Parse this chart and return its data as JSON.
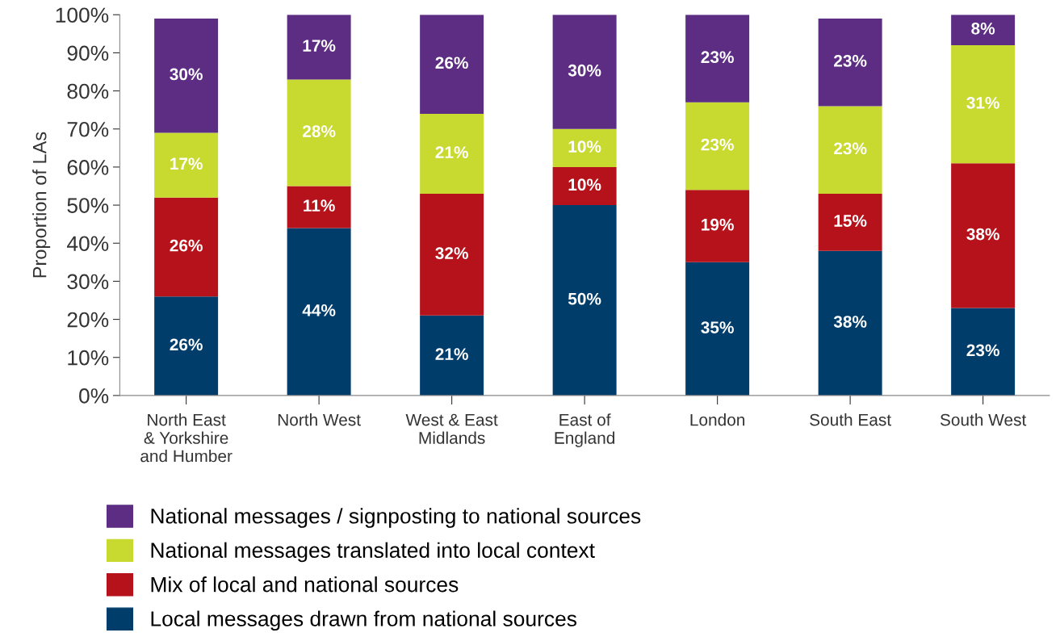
{
  "chart_data": {
    "type": "bar",
    "stacked": true,
    "ylabel": "Proportion of LAs",
    "categories": [
      "North East\n& Yorkshire\nand Humber",
      "North West",
      "West & East\nMidlands",
      "East of\nEngland",
      "London",
      "South East",
      "South West"
    ],
    "series": [
      {
        "name": "Local messages drawn from national sources",
        "color": "#003d6b",
        "values": [
          26,
          44,
          21,
          50,
          35,
          38,
          23
        ],
        "value_labels": [
          "26%",
          "44%",
          "21%",
          "50%",
          "35%",
          "38%",
          "23%"
        ]
      },
      {
        "name": "Mix of local and national sources",
        "color": "#b5121b",
        "values": [
          26,
          11,
          32,
          10,
          19,
          15,
          38
        ],
        "value_labels": [
          "26%",
          "11%",
          "32%",
          "10%",
          "19%",
          "15%",
          "38%"
        ]
      },
      {
        "name": "National messages translated into local context",
        "color": "#c8d92f",
        "values": [
          17,
          28,
          21,
          10,
          23,
          23,
          31
        ],
        "value_labels": [
          "17%",
          "28%",
          "21%",
          "10%",
          "23%",
          "23%",
          "31%"
        ]
      },
      {
        "name": "National messages / signposting to national sources",
        "color": "#5c2d82",
        "values": [
          30,
          17,
          26,
          30,
          23,
          23,
          8
        ],
        "value_labels": [
          "30%",
          "17%",
          "26%",
          "30%",
          "23%",
          "23%",
          "8%"
        ]
      }
    ],
    "ylim": [
      0,
      100
    ],
    "yticks": [
      {
        "value": 0,
        "label": "0%"
      },
      {
        "value": 10,
        "label": "10%"
      },
      {
        "value": 20,
        "label": "20%"
      },
      {
        "value": 30,
        "label": "30%"
      },
      {
        "value": 40,
        "label": "40%"
      },
      {
        "value": 50,
        "label": "50%"
      },
      {
        "value": 60,
        "label": "60%"
      },
      {
        "value": 70,
        "label": "70%"
      },
      {
        "value": 80,
        "label": "80%"
      },
      {
        "value": 90,
        "label": "90%"
      },
      {
        "value": 100,
        "label": "100%"
      }
    ],
    "legend": "bottom"
  }
}
